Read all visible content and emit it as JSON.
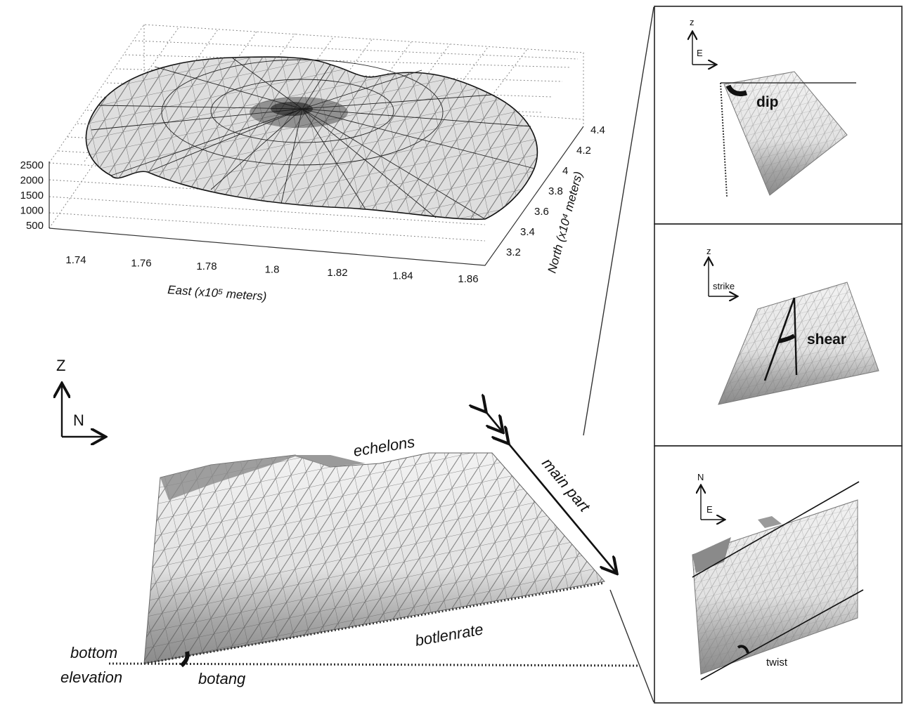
{
  "map3d": {
    "z_ticks": [
      "2500",
      "2000",
      "1500",
      "1000",
      "500"
    ],
    "east_ticks": [
      "1.74",
      "1.76",
      "1.78",
      "1.8",
      "1.82",
      "1.84",
      "1.86"
    ],
    "north_ticks": [
      "4.4",
      "4.2",
      "4",
      "3.8",
      "3.6",
      "3.4",
      "3.2"
    ],
    "east_label": "East (x10⁵ meters)",
    "north_label": "North (x10⁴ meters)"
  },
  "main": {
    "axis_z": "Z",
    "axis_n": "N",
    "labels": {
      "echelons": "echelons",
      "main_part": "main part",
      "botlenrate": "botlenrate",
      "bottom": "bottom",
      "elevation": "elevation",
      "botang": "botang"
    }
  },
  "panels": {
    "dip": {
      "axis_vertical": "z",
      "axis_horizontal": "E",
      "label": "dip"
    },
    "shear": {
      "axis_vertical": "z",
      "axis_horizontal": "strike",
      "label": "shear"
    },
    "twist": {
      "axis_vertical": "N",
      "axis_horizontal": "E",
      "label": "twist"
    }
  },
  "colors": {
    "mesh_light": "#e6e6e6",
    "mesh_dark": "#8c8c8c",
    "line": "#111111"
  }
}
